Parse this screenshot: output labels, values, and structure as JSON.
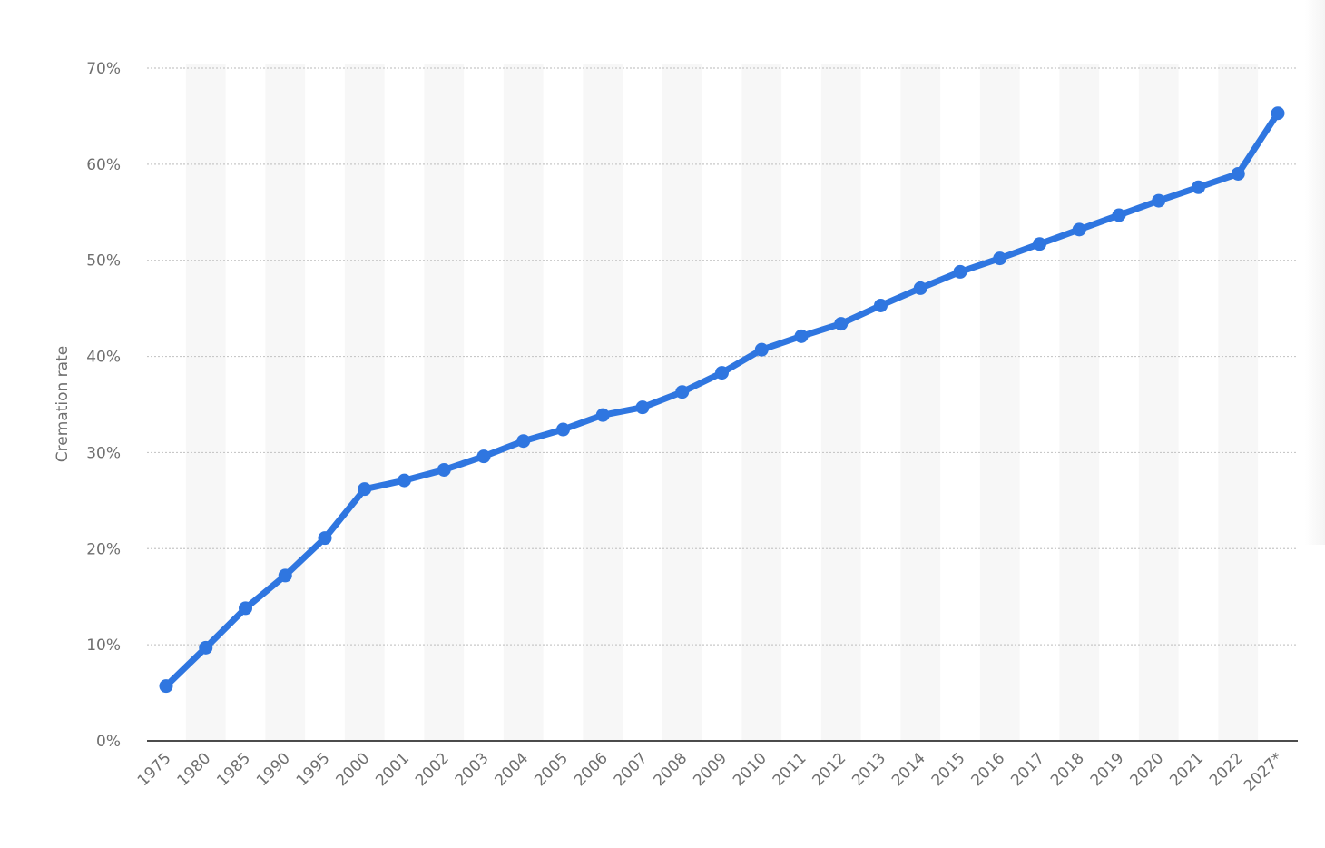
{
  "chart_data": {
    "type": "line",
    "categories": [
      "1975",
      "1980",
      "1985",
      "1990",
      "1995",
      "2000",
      "2001",
      "2002",
      "2003",
      "2004",
      "2005",
      "2006",
      "2007",
      "2008",
      "2009",
      "2010",
      "2011",
      "2012",
      "2013",
      "2014",
      "2015",
      "2016",
      "2017",
      "2018",
      "2019",
      "2020",
      "2021",
      "2022",
      "2027*"
    ],
    "values": [
      5.7,
      9.7,
      13.8,
      17.2,
      21.1,
      26.2,
      27.1,
      28.2,
      29.6,
      31.2,
      32.4,
      33.9,
      34.7,
      36.3,
      38.3,
      40.7,
      42.1,
      43.4,
      45.3,
      47.1,
      48.8,
      50.2,
      51.7,
      53.2,
      54.7,
      56.2,
      57.6,
      59.0,
      65.3
    ],
    "ylabel": "Cremation rate",
    "ylim": [
      0,
      70
    ],
    "yticks": [
      "0%",
      "10%",
      "20%",
      "30%",
      "40%",
      "50%",
      "60%",
      "70%"
    ],
    "grid": true,
    "colors": {
      "line": "#2f76e0",
      "band": "#f7f7f7",
      "grid": "#c8c8c8",
      "axis": "#111111",
      "text": "#6f6f6f"
    }
  }
}
